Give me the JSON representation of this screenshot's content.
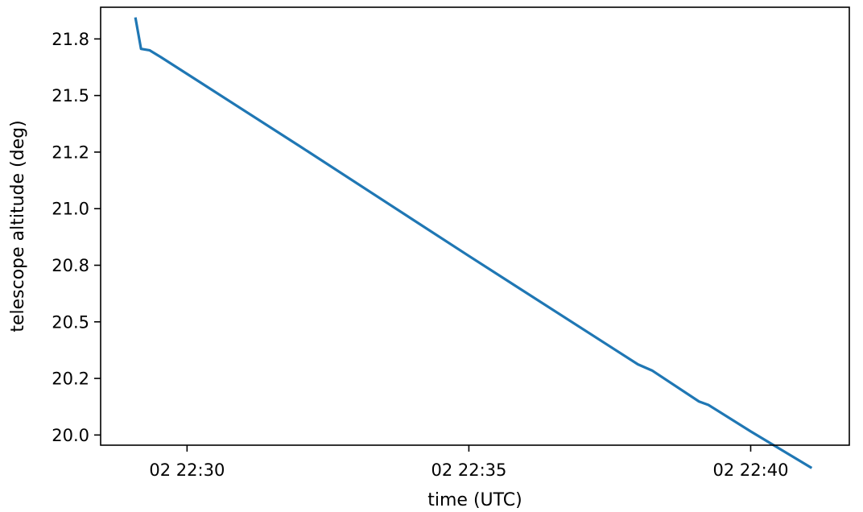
{
  "chart_data": {
    "type": "line",
    "title": "",
    "xlabel": "time (UTC)",
    "ylabel": "telescope altitude (deg)",
    "xlim": [
      "02 22:28:28",
      "02 22:41:45"
    ],
    "ylim": [
      19.955,
      21.89
    ],
    "x_ticks": [
      {
        "value": "02 22:30:00",
        "label": "02 22:30"
      },
      {
        "value": "02 22:35:00",
        "label": "02 22:35"
      },
      {
        "value": "02 22:40:00",
        "label": "02 22:40"
      }
    ],
    "y_ticks": [
      {
        "value": 20.0,
        "label": "20.0"
      },
      {
        "value": 20.25,
        "label": "20.2"
      },
      {
        "value": 20.5,
        "label": "20.5"
      },
      {
        "value": 20.75,
        "label": "20.8"
      },
      {
        "value": 21.0,
        "label": "21.0"
      },
      {
        "value": 21.25,
        "label": "21.2"
      },
      {
        "value": 21.5,
        "label": "21.5"
      },
      {
        "value": 21.75,
        "label": "21.8"
      }
    ],
    "grid": false,
    "series": [
      {
        "color": "#1f77b4",
        "points": [
          {
            "x": "02 22:29:05",
            "y": 21.845
          },
          {
            "x": "02 22:29:11",
            "y": 21.706
          },
          {
            "x": "02 22:29:20",
            "y": 21.7
          },
          {
            "x": "02 22:29:32",
            "y": 21.67
          },
          {
            "x": "02 22:32:00",
            "y": 21.276
          },
          {
            "x": "02 22:35:00",
            "y": 20.791
          },
          {
            "x": "02 22:38:00",
            "y": 20.312
          },
          {
            "x": "02 22:38:15",
            "y": 20.285
          },
          {
            "x": "02 22:39:05",
            "y": 20.148
          },
          {
            "x": "02 22:39:15",
            "y": 20.133
          },
          {
            "x": "02 22:40:00",
            "y": 20.016
          },
          {
            "x": "02 22:41:05",
            "y": 19.854
          }
        ]
      }
    ]
  }
}
